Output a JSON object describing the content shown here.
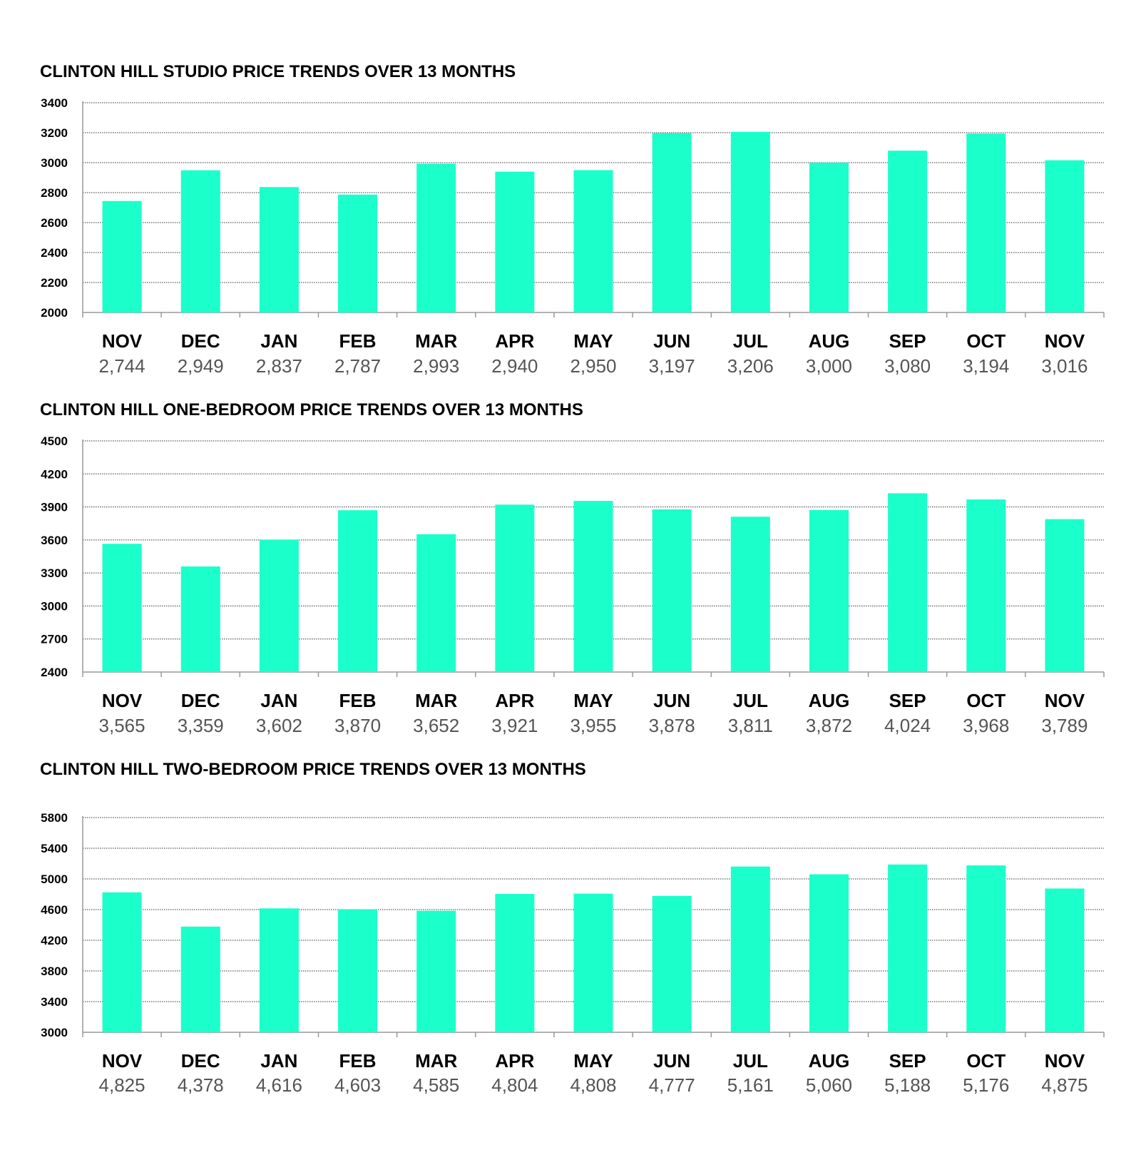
{
  "colors": {
    "bar": "#1bffcb",
    "title": "#000000",
    "value_text": "#555555"
  },
  "chart_data": [
    {
      "type": "bar",
      "title": "CLINTON HILL STUDIO PRICE TRENDS OVER 13 MONTHS",
      "categories": [
        "NOV",
        "DEC",
        "JAN",
        "FEB",
        "MAR",
        "APR",
        "MAY",
        "JUN",
        "JUL",
        "AUG",
        "SEP",
        "OCT",
        "NOV"
      ],
      "values": [
        2744,
        2949,
        2837,
        2787,
        2993,
        2940,
        2950,
        3197,
        3206,
        3000,
        3080,
        3194,
        3016
      ],
      "value_labels": [
        "2,744",
        "2,949",
        "2,837",
        "2,787",
        "2,993",
        "2,940",
        "2,950",
        "3,197",
        "3,206",
        "3,000",
        "3,080",
        "3,194",
        "3,016"
      ],
      "yticks": [
        "3400",
        "3200",
        "3000",
        "2800",
        "2600",
        "2400",
        "2200",
        "2000"
      ],
      "ylim": [
        2000,
        3400
      ],
      "xlabel": "",
      "ylabel": "",
      "grid": true
    },
    {
      "type": "bar",
      "title": "CLINTON HILL ONE-BEDROOM PRICE TRENDS OVER 13 MONTHS",
      "categories": [
        "NOV",
        "DEC",
        "JAN",
        "FEB",
        "MAR",
        "APR",
        "MAY",
        "JUN",
        "JUL",
        "AUG",
        "SEP",
        "OCT",
        "NOV"
      ],
      "values": [
        3565,
        3359,
        3602,
        3870,
        3652,
        3921,
        3955,
        3878,
        3811,
        3872,
        4024,
        3968,
        3789
      ],
      "value_labels": [
        "3,565",
        "3,359",
        "3,602",
        "3,870",
        "3,652",
        "3,921",
        "3,955",
        "3,878",
        "3,811",
        "3,872",
        "4,024",
        "3,968",
        "3,789"
      ],
      "yticks": [
        "4500",
        "4200",
        "3900",
        "3600",
        "3300",
        "3000",
        "2700",
        "2400"
      ],
      "ylim": [
        2400,
        4500
      ],
      "xlabel": "",
      "ylabel": "",
      "grid": true
    },
    {
      "type": "bar",
      "title": "CLINTON HILL TWO-BEDROOM PRICE TRENDS OVER 13 MONTHS",
      "categories": [
        "NOV",
        "DEC",
        "JAN",
        "FEB",
        "MAR",
        "APR",
        "MAY",
        "JUN",
        "JUL",
        "AUG",
        "SEP",
        "OCT",
        "NOV"
      ],
      "values": [
        4825,
        4378,
        4616,
        4603,
        4585,
        4804,
        4808,
        4777,
        5161,
        5060,
        5188,
        5176,
        4875
      ],
      "value_labels": [
        "4,825",
        "4,378",
        "4,616",
        "4,603",
        "4,585",
        "4,804",
        "4,808",
        "4,777",
        "5,161",
        "5,060",
        "5,188",
        "5,176",
        "4,875"
      ],
      "yticks": [
        "5800",
        "5400",
        "5000",
        "4600",
        "4200",
        "3800",
        "3400",
        "3000"
      ],
      "ylim": [
        3000,
        5800
      ],
      "xlabel": "",
      "ylabel": "",
      "grid": true
    }
  ]
}
